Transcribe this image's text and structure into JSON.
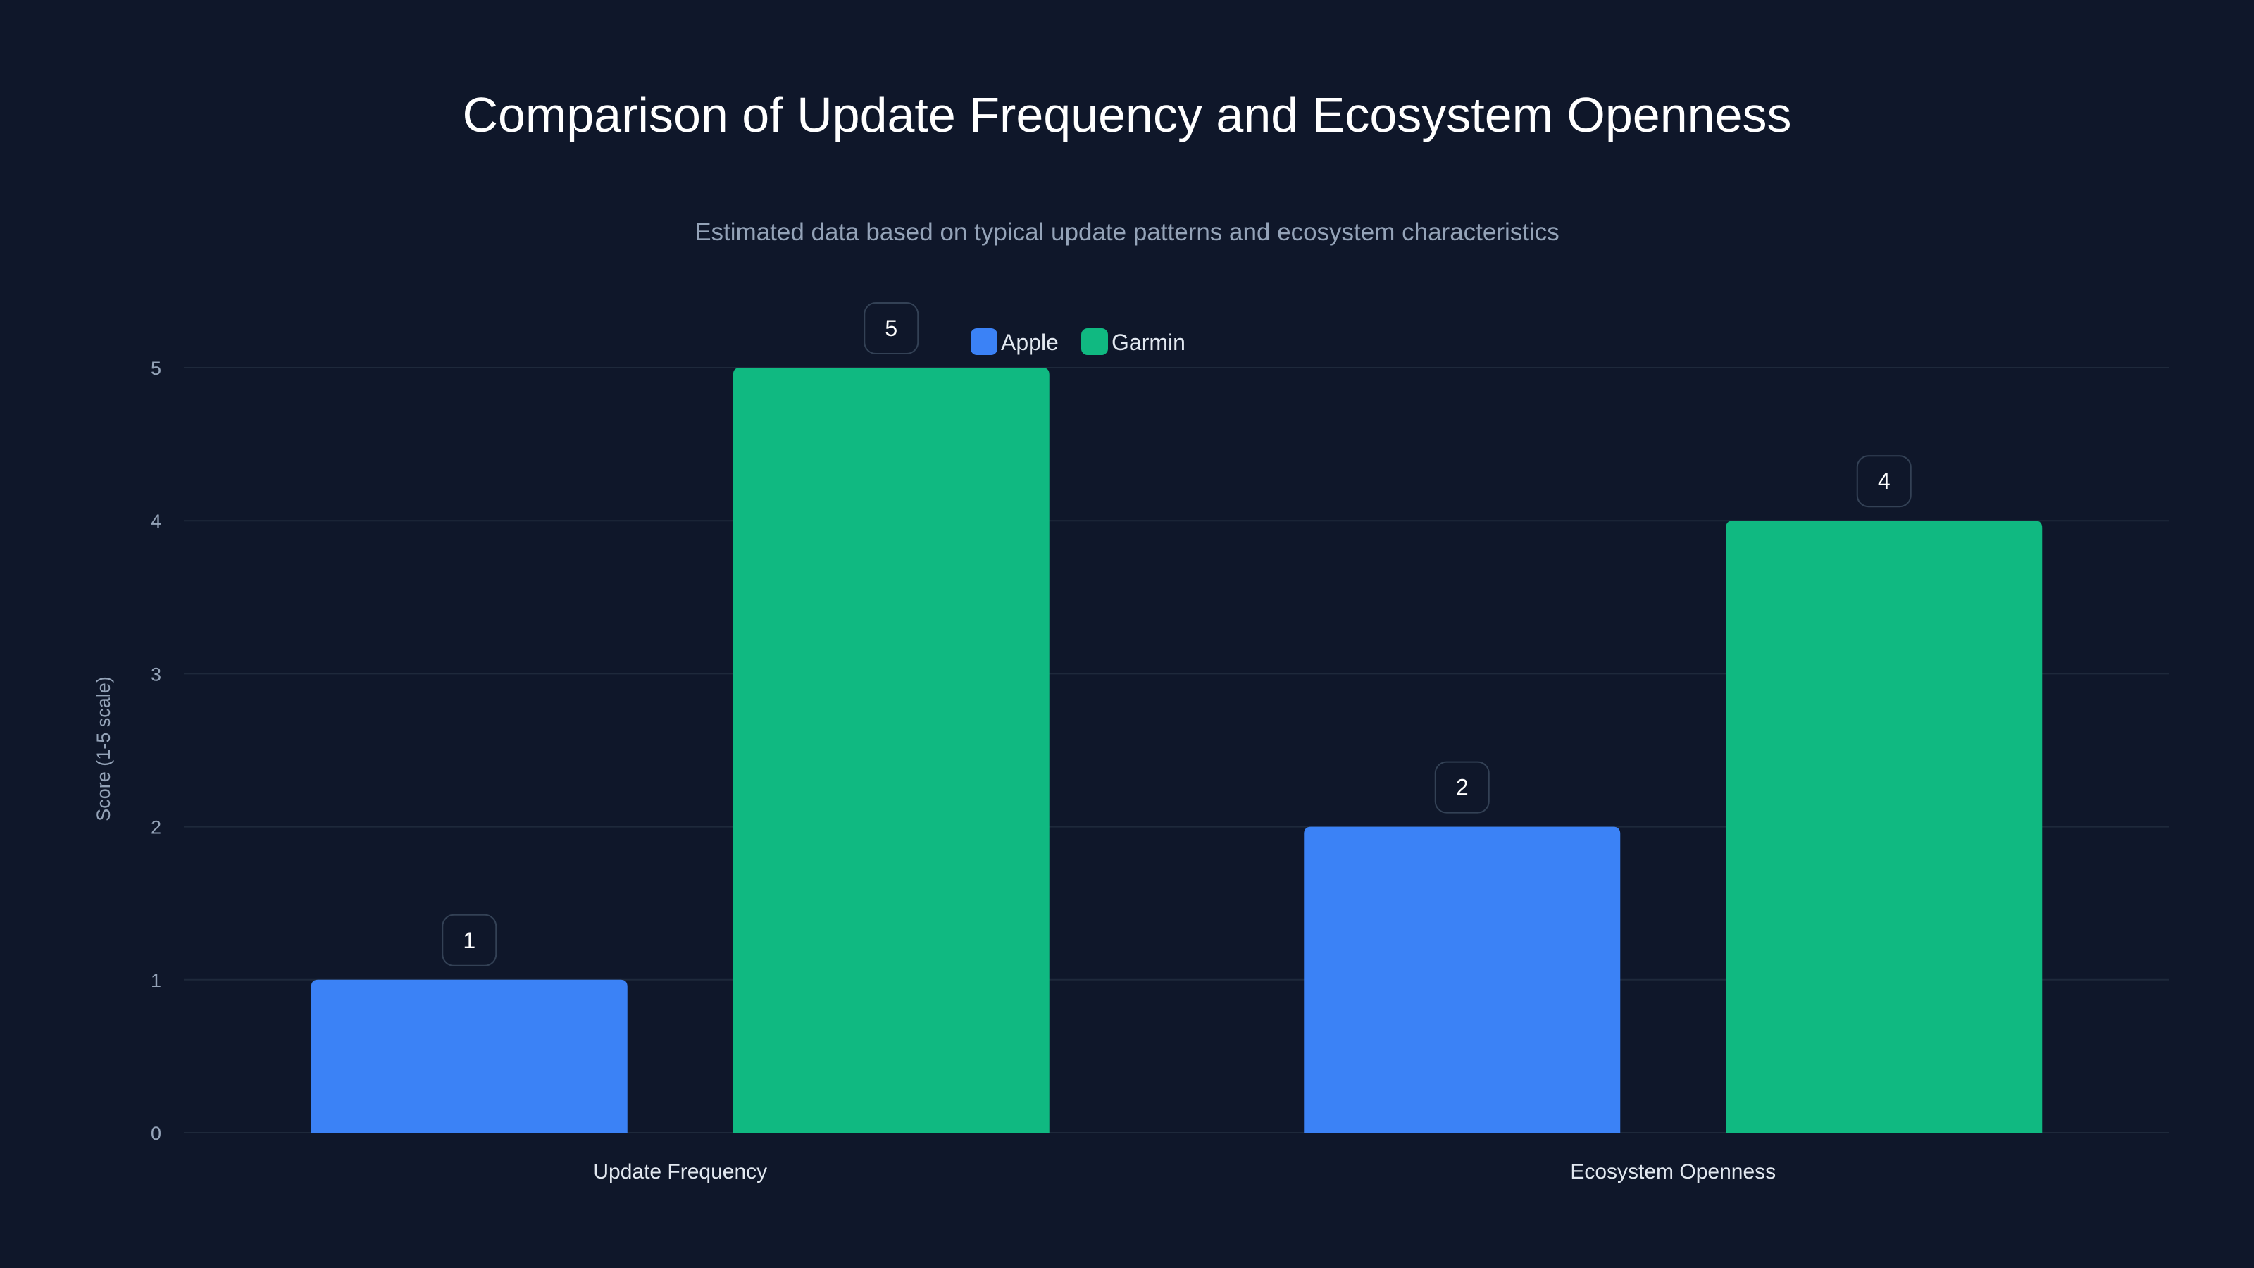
{
  "chart_data": {
    "type": "bar",
    "title": "Comparison of Update Frequency and Ecosystem Openness",
    "subtitle": "Estimated data based on typical update patterns and ecosystem characteristics",
    "xlabel": "",
    "ylabel": "Score (1-5 scale)",
    "ylim": [
      0,
      5
    ],
    "yticks": [
      "0",
      "1",
      "2",
      "3",
      "4",
      "5"
    ],
    "grid": true,
    "legend_position": "top-center",
    "categories": [
      "Update Frequency",
      "Ecosystem Openness"
    ],
    "series": [
      {
        "name": "Apple",
        "color": "#3b82f6",
        "values": [
          1,
          2
        ]
      },
      {
        "name": "Garmin",
        "color": "#10b981",
        "values": [
          5,
          4
        ]
      }
    ]
  }
}
